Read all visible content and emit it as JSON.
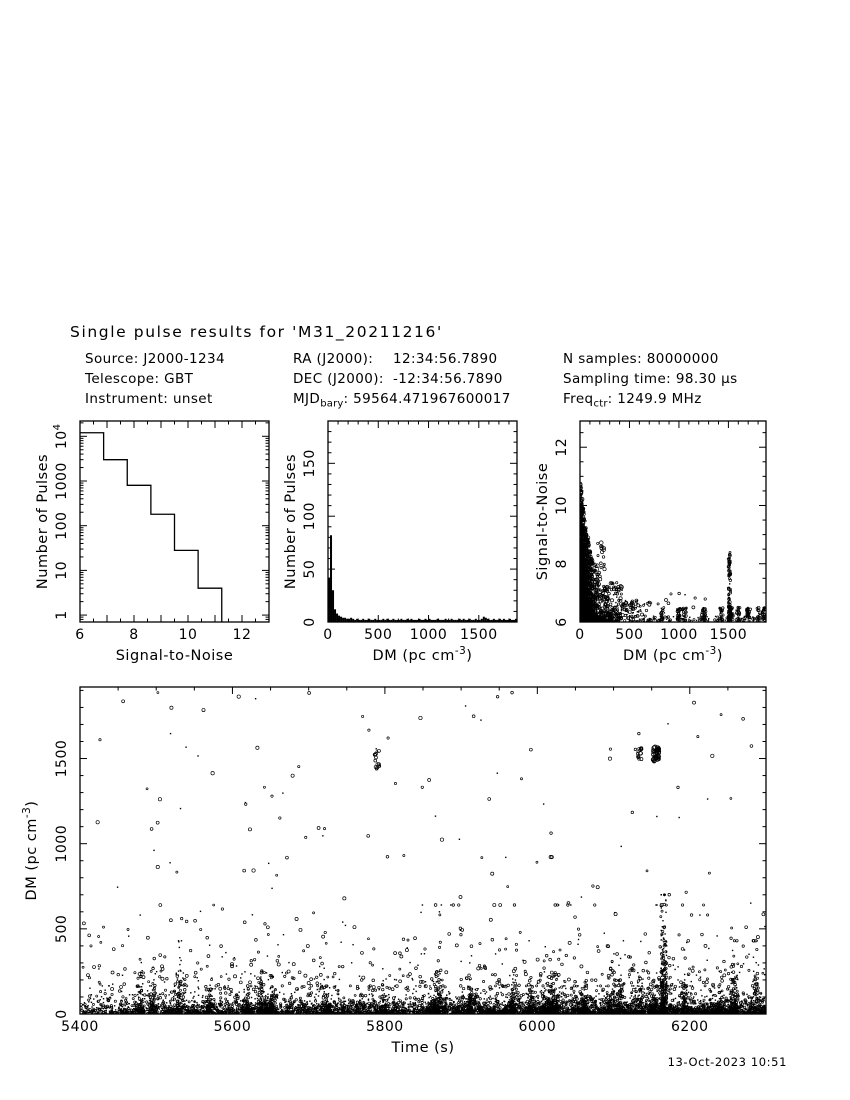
{
  "title": "Single pulse results for 'M31_20211216'",
  "timestamp": "13-Oct-2023 10:51",
  "info": {
    "source": {
      "label": "Source:",
      "value": "J2000-1234"
    },
    "telescope": {
      "label": "Telescope:",
      "value": "GBT"
    },
    "instrument": {
      "label": "Instrument:",
      "value": "unset"
    },
    "ra": {
      "label": "RA (J2000):",
      "value": "12:34:56.7890"
    },
    "dec": {
      "label": "DEC (J2000):",
      "value": "-12:34:56.7890"
    },
    "mjd": {
      "label_main": "MJD",
      "label_sub": "bary",
      "value": ": 59564.471967600017"
    },
    "nsamples": {
      "label": "N samples:",
      "value": "80000000"
    },
    "sampling": {
      "label": "Sampling time:",
      "value": "98.30 μs"
    },
    "freq": {
      "label_main": "Freq",
      "label_sub": "ctr",
      "value": ": 1249.9 MHz"
    }
  },
  "chart_data": [
    {
      "id": "snr-hist",
      "type": "bar",
      "style": "steps-outline",
      "title": "",
      "xlabel": "Signal-to-Noise",
      "ylabel": "Number of Pulses",
      "xlim": [
        6,
        13
      ],
      "ylim": [
        0.7,
        22000
      ],
      "ylog": true,
      "xticks": [
        6,
        8,
        10,
        12
      ],
      "xmajor_step": 1,
      "xminor_step": 0.5,
      "yticks": [
        1,
        10,
        100,
        1000,
        10000
      ],
      "ytick_labels": [
        [
          "1"
        ],
        [
          "10"
        ],
        [
          "100"
        ],
        [
          "1000"
        ],
        [
          {
            "t": "10"
          },
          {
            "t": "4",
            "sup": true
          }
        ]
      ],
      "bin_edges": [
        6.0,
        6.875,
        7.75,
        8.625,
        9.5,
        10.375,
        11.25
      ],
      "counts": [
        12000,
        3000,
        800,
        180,
        28,
        4
      ]
    },
    {
      "id": "dm-hist",
      "type": "bar",
      "style": "bars-filled",
      "title": "",
      "xlabel_parts": [
        {
          "t": "DM (pc cm"
        },
        {
          "t": "-3",
          "sup": true
        },
        {
          "t": ")"
        }
      ],
      "ylabel": "Number of Pulses",
      "xlim": [
        0,
        1880
      ],
      "ylim": [
        0,
        190
      ],
      "xticks": [
        0,
        500,
        1000,
        1500
      ],
      "xmajor_step": 500,
      "xminor_step": 100,
      "yticks": [
        0,
        50,
        100,
        150
      ],
      "ymajor_step": 50,
      "yminor_step": 10,
      "bin_width": 20,
      "counts": [
        42,
        82,
        30,
        12,
        8,
        6,
        5,
        4,
        4,
        3,
        3,
        4,
        3,
        2,
        3,
        2,
        2,
        3,
        2,
        2,
        3,
        2,
        2,
        3,
        2,
        2,
        2,
        3,
        2,
        3,
        2,
        2,
        3,
        2,
        2,
        2,
        3,
        2,
        2,
        3,
        2,
        3,
        2,
        2,
        2,
        3,
        2,
        2,
        3,
        2,
        3,
        2,
        2,
        2,
        3,
        2,
        2,
        2,
        3,
        2,
        2,
        3,
        2,
        2,
        2,
        3,
        2,
        3,
        2,
        2,
        3,
        2,
        2,
        3,
        2,
        2,
        3,
        5,
        4,
        3,
        2,
        2,
        3,
        2,
        2,
        3,
        2,
        3,
        2,
        2,
        3,
        2,
        2,
        3,
        2
      ]
    },
    {
      "id": "snr-dm",
      "type": "scatter",
      "title": "",
      "xlabel_parts": [
        {
          "t": "DM (pc cm"
        },
        {
          "t": "-3",
          "sup": true
        },
        {
          "t": ")"
        }
      ],
      "ylabel": "Signal-to-Noise",
      "xlim": [
        0,
        1880
      ],
      "ylim": [
        6,
        12.9
      ],
      "xticks": [
        0,
        500,
        1000,
        1500
      ],
      "xmajor_step": 500,
      "xminor_step": 100,
      "yticks": [
        6,
        8,
        10,
        12
      ],
      "ymajor_step": 2,
      "yminor_step": 0.5,
      "seed": 7,
      "description": "Dense cluster of pulses at DM<300 with S/N up to ~10.7 falling off with DM; sparse low-S/N events across all DMs; narrow candidate spike at DM~1500 reaching S/N~8.4.",
      "point_distribution": [
        {
          "kind": "envelope",
          "n": 2900,
          "xscale": 65,
          "xmax": 380,
          "amp": 4.9,
          "tau": 155,
          "pow": 3.2,
          "size": [
            0.6,
            1.9
          ]
        },
        {
          "kind": "box",
          "n": 26,
          "xr": [
            140,
            250
          ],
          "yr": [
            7.4,
            8.75
          ],
          "size": [
            1.0,
            1.9
          ]
        },
        {
          "kind": "box",
          "n": 70,
          "xr": [
            240,
            430
          ],
          "yr": [
            6.25,
            7.35
          ],
          "size": [
            0.8,
            1.7
          ]
        },
        {
          "kind": "box",
          "n": 110,
          "xr": [
            280,
            720
          ],
          "yr": [
            6.02,
            6.75
          ],
          "size": [
            0.7,
            1.6
          ]
        },
        {
          "kind": "clumps",
          "n": 250,
          "centers": [
            830,
            1000,
            1060,
            1250,
            1430,
            1520,
            1600,
            1700,
            1800,
            1860
          ],
          "spread": 30,
          "yr": [
            6.02,
            6.5
          ],
          "size": [
            0.7,
            1.5
          ]
        },
        {
          "kind": "box",
          "n": 160,
          "xr": [
            0,
            1880
          ],
          "yr": [
            6.0,
            6.2
          ],
          "size": [
            0.6,
            1.2
          ]
        },
        {
          "kind": "blob",
          "n": 95,
          "xr": [
            1498,
            1522
          ],
          "ybase": 6.0,
          "amp": 2.35,
          "pow": 1.7,
          "size": [
            0.7,
            1.5
          ]
        },
        {
          "kind": "box",
          "n": 7,
          "xr": [
            1500,
            1518
          ],
          "yr": [
            8.0,
            8.4
          ],
          "size": [
            0.9,
            1.5
          ]
        },
        {
          "kind": "box",
          "n": 9,
          "xr": [
            700,
            1400
          ],
          "yr": [
            6.5,
            7.05
          ],
          "size": [
            0.8,
            1.5
          ]
        }
      ]
    },
    {
      "id": "dm-time",
      "type": "scatter",
      "title": "",
      "xlabel": "Time (s)",
      "ylabel_parts": [
        {
          "t": "DM (pc cm"
        },
        {
          "t": "-3",
          "sup": true
        },
        {
          "t": ")"
        }
      ],
      "xlim": [
        5400,
        6300
      ],
      "ylim": [
        0,
        1920
      ],
      "xticks": [
        5400,
        5600,
        5800,
        6000,
        6200
      ],
      "xmajor_step": 200,
      "xminor_step": 50,
      "yticks": [
        0,
        500,
        1000,
        1500
      ],
      "ymajor_step": 500,
      "yminor_step": 100,
      "seed": 42,
      "description": "Dense band of pulses at DM<~150 across 5400-6300 s growing denser with time, spiky clumps to DM~400, scattered events to DM~600, sparse events up to DM~1900; vertical burst near t~6165 s reaching DM~700 with a dense clump at DM~1500-1565; smaller streaks at t~5790 s and t~6132 s near DM~1500.",
      "point_distribution": [
        {
          "kind": "band",
          "n": 5200,
          "xr": [
            5400,
            6300
          ],
          "xskew": 0.8,
          "yscale": 38,
          "ymax": 165,
          "size": [
            0.5,
            1.3
          ]
        },
        {
          "kind": "spikes",
          "n": 1900,
          "nspikes": 30,
          "xr": [
            5430,
            6295
          ],
          "xskew": 0.75,
          "spread": 5,
          "yscale": 75,
          "ymax": 430,
          "size": [
            0.5,
            1.4
          ]
        },
        {
          "kind": "band",
          "n": 520,
          "xr": [
            5400,
            6300
          ],
          "xskew": 0.85,
          "ybase": 140,
          "yscale": 160,
          "ymax": 640,
          "size": [
            0.7,
            1.6
          ]
        },
        {
          "kind": "box",
          "n": 105,
          "xr": [
            5405,
            6295
          ],
          "yr": [
            640,
            1890
          ],
          "size": [
            0.7,
            1.7
          ]
        },
        {
          "kind": "box",
          "n": 48,
          "xr": [
            6152,
            6160
          ],
          "yr": [
            1480,
            1568
          ],
          "size": [
            1.3,
            2.3
          ]
        },
        {
          "kind": "box",
          "n": 14,
          "xr": [
            6128,
            6137
          ],
          "yr": [
            1495,
            1562
          ],
          "size": [
            1.0,
            1.8
          ]
        },
        {
          "kind": "box",
          "n": 13,
          "xr": [
            5786,
            5793
          ],
          "yr": [
            1428,
            1548
          ],
          "size": [
            1.0,
            1.8
          ]
        },
        {
          "kind": "stripe",
          "n": 240,
          "xr": [
            6162,
            6170
          ],
          "yscale": 200,
          "ymax": 700,
          "size": [
            0.5,
            1.3
          ]
        }
      ]
    }
  ]
}
